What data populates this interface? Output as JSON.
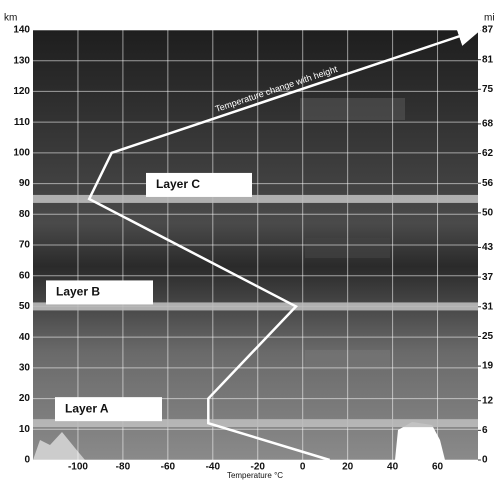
{
  "chart_data": {
    "type": "line",
    "y_label": "km",
    "y2_label": "mi",
    "x_label": "Temperature °C",
    "annotation": "Temperature change with height",
    "x": [
      12,
      -42,
      -42,
      -3,
      -95,
      -85,
      78
    ],
    "values": [
      0,
      12,
      20,
      50,
      85,
      100,
      140
    ],
    "color": "#ffffff",
    "xlim": [
      -120,
      78
    ],
    "ylim": [
      0,
      140
    ],
    "y2lim": [
      0,
      87
    ],
    "xticks": [
      -100,
      -80,
      -60,
      -40,
      -20,
      0,
      20,
      40,
      60
    ],
    "yticks": [
      0,
      10,
      20,
      30,
      40,
      50,
      60,
      70,
      80,
      90,
      100,
      110,
      120,
      130,
      140
    ],
    "y2ticks": [
      0,
      6,
      12,
      19,
      25,
      31,
      37,
      43,
      50,
      56,
      62,
      68,
      75,
      81,
      87
    ],
    "grid": true,
    "layers": [
      {
        "label": "Layer A",
        "height": 12
      },
      {
        "label": "Layer B",
        "height": 50
      },
      {
        "label": "Layer C",
        "height": 85
      }
    ]
  }
}
